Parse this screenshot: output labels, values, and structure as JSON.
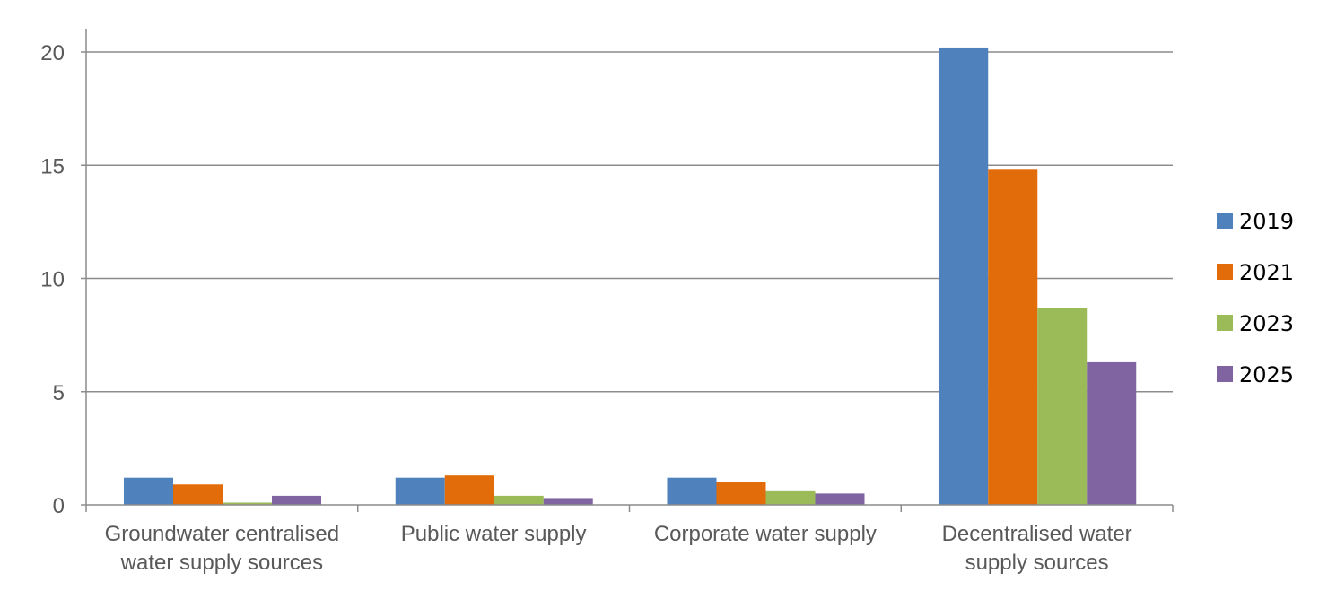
{
  "chart_data": {
    "type": "bar",
    "title": "",
    "xlabel": "",
    "ylabel": "",
    "ylim": [
      0,
      20
    ],
    "y_ticks": [
      0,
      5,
      10,
      15,
      20
    ],
    "grid": true,
    "legend_position": "right",
    "categories": [
      [
        "Groundwater centralised",
        "water supply sources"
      ],
      [
        "Public water supply"
      ],
      [
        "Corporate water supply"
      ],
      [
        "Decentralised water",
        "supply sources"
      ]
    ],
    "series": [
      {
        "name": "2019",
        "color": "#4f81bd",
        "values": [
          1.2,
          1.2,
          1.2,
          20.2
        ]
      },
      {
        "name": "2021",
        "color": "#e36c0a",
        "values": [
          0.9,
          1.3,
          1.0,
          14.8
        ]
      },
      {
        "name": "2023",
        "color": "#9bbb59",
        "values": [
          0.1,
          0.4,
          0.6,
          8.7
        ]
      },
      {
        "name": "2025",
        "color": "#8064a2",
        "values": [
          0.4,
          0.3,
          0.5,
          6.3
        ]
      }
    ]
  }
}
